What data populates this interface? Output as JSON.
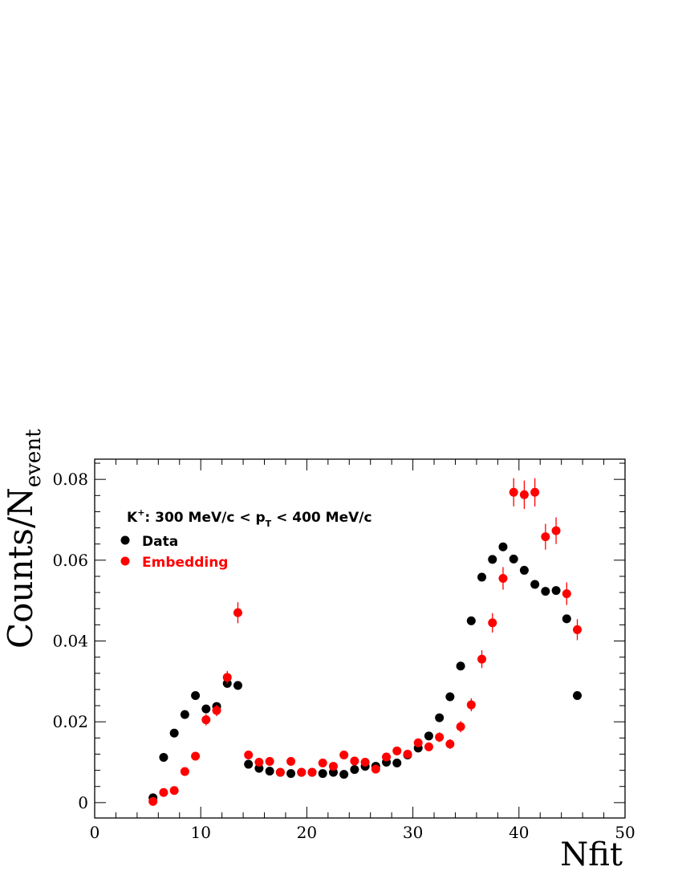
{
  "chart_data": {
    "type": "scatter",
    "xlabel": "Nfit",
    "ylabel_main": "Counts/N",
    "ylabel_sub": "event",
    "xlim": [
      0,
      50
    ],
    "ylim": [
      -0.0038,
      0.085
    ],
    "xticks": [
      0,
      10,
      20,
      30,
      40,
      50
    ],
    "yticks": [
      0,
      0.02,
      0.04,
      0.06,
      0.08
    ],
    "xtick_labels": [
      "0",
      "10",
      "20",
      "30",
      "40",
      "50"
    ],
    "ytick_labels": [
      "0",
      "0.02",
      "0.04",
      "0.06",
      "0.08"
    ],
    "grid": false,
    "legend_placement": "top-left",
    "annotation": {
      "prefix": "K",
      "prefix_sup": "+",
      "middle": ": 300 MeV/c < p",
      "middle_sub": "T",
      "suffix": " < 400 MeV/c"
    },
    "series": [
      {
        "name": "Data",
        "color": "#000000",
        "x": [
          5.5,
          6.5,
          7.5,
          8.5,
          9.5,
          10.5,
          11.5,
          12.5,
          13.5,
          14.5,
          15.5,
          16.5,
          17.5,
          18.5,
          19.5,
          20.5,
          21.5,
          22.5,
          23.5,
          24.5,
          25.5,
          26.5,
          27.5,
          28.5,
          29.5,
          30.5,
          31.5,
          32.5,
          33.5,
          34.5,
          35.5,
          36.5,
          37.5,
          38.5,
          39.5,
          40.5,
          41.5,
          42.5,
          43.5,
          44.5,
          45.5
        ],
        "y": [
          0.0012,
          0.0112,
          0.0172,
          0.0218,
          0.0265,
          0.0232,
          0.0238,
          0.0295,
          0.029,
          0.0095,
          0.0085,
          0.0078,
          0.0075,
          0.0072,
          0.0075,
          0.0075,
          0.0072,
          0.0075,
          0.007,
          0.0082,
          0.009,
          0.009,
          0.01,
          0.0098,
          0.0118,
          0.0135,
          0.0165,
          0.021,
          0.0262,
          0.0338,
          0.045,
          0.0558,
          0.0602,
          0.0633,
          0.0603,
          0.0575,
          0.054,
          0.0523,
          0.0525,
          0.0455,
          0.0265
        ],
        "err": [
          0.0003,
          0.0004,
          0.0004,
          0.0005,
          0.0005,
          0.0005,
          0.0005,
          0.0005,
          0.0005,
          0.0003,
          0.0003,
          0.0003,
          0.0003,
          0.0003,
          0.0003,
          0.0003,
          0.0003,
          0.0003,
          0.0003,
          0.0003,
          0.0003,
          0.0003,
          0.0003,
          0.0003,
          0.0003,
          0.0003,
          0.0004,
          0.0004,
          0.0005,
          0.0005,
          0.0006,
          0.0007,
          0.0007,
          0.0007,
          0.0007,
          0.0007,
          0.0007,
          0.0007,
          0.0007,
          0.0006,
          0.0005
        ]
      },
      {
        "name": "Embedding",
        "color": "#ff0000",
        "x": [
          5.5,
          6.5,
          7.5,
          8.5,
          9.5,
          10.5,
          11.5,
          12.5,
          13.5,
          14.5,
          15.5,
          16.5,
          17.5,
          18.5,
          19.5,
          20.5,
          21.5,
          22.5,
          23.5,
          24.5,
          25.5,
          26.5,
          27.5,
          28.5,
          29.5,
          30.5,
          31.5,
          32.5,
          33.5,
          34.5,
          35.5,
          36.5,
          37.5,
          38.5,
          39.5,
          40.5,
          41.5,
          42.5,
          43.5,
          44.5,
          45.5
        ],
        "y": [
          0.0003,
          0.0025,
          0.003,
          0.0077,
          0.0115,
          0.0205,
          0.0228,
          0.031,
          0.047,
          0.0118,
          0.01,
          0.0102,
          0.0075,
          0.0102,
          0.0075,
          0.0075,
          0.0098,
          0.009,
          0.0118,
          0.0103,
          0.01,
          0.0083,
          0.0113,
          0.0128,
          0.012,
          0.0148,
          0.0138,
          0.0162,
          0.0145,
          0.0188,
          0.0242,
          0.0355,
          0.0445,
          0.0555,
          0.0768,
          0.0762,
          0.0768,
          0.0658,
          0.0673,
          0.0517,
          0.0428
        ],
        "err": [
          0.0004,
          0.0005,
          0.0006,
          0.0008,
          0.0009,
          0.0014,
          0.0014,
          0.0016,
          0.0026,
          0.0009,
          0.0008,
          0.0008,
          0.0007,
          0.0008,
          0.0007,
          0.0007,
          0.0008,
          0.0008,
          0.0009,
          0.0009,
          0.0008,
          0.0008,
          0.0009,
          0.001,
          0.001,
          0.0011,
          0.0011,
          0.0012,
          0.0012,
          0.0014,
          0.0016,
          0.0022,
          0.0024,
          0.0028,
          0.0035,
          0.0035,
          0.0035,
          0.0032,
          0.0033,
          0.0028,
          0.0026
        ]
      }
    ]
  }
}
